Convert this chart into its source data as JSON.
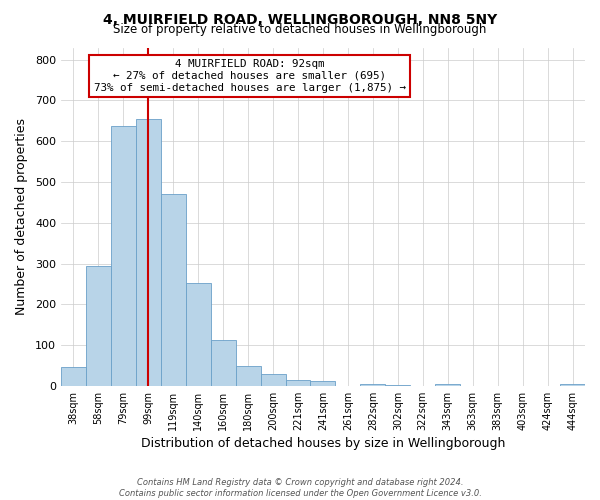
{
  "title": "4, MUIRFIELD ROAD, WELLINGBOROUGH, NN8 5NY",
  "subtitle": "Size of property relative to detached houses in Wellingborough",
  "xlabel": "Distribution of detached houses by size in Wellingborough",
  "ylabel": "Number of detached properties",
  "footer_line1": "Contains HM Land Registry data © Crown copyright and database right 2024.",
  "footer_line2": "Contains public sector information licensed under the Open Government Licence v3.0.",
  "bin_labels": [
    "38sqm",
    "58sqm",
    "79sqm",
    "99sqm",
    "119sqm",
    "140sqm",
    "160sqm",
    "180sqm",
    "200sqm",
    "221sqm",
    "241sqm",
    "261sqm",
    "282sqm",
    "302sqm",
    "322sqm",
    "343sqm",
    "363sqm",
    "383sqm",
    "403sqm",
    "424sqm",
    "444sqm"
  ],
  "bar_values": [
    47,
    295,
    638,
    655,
    470,
    253,
    113,
    48,
    28,
    15,
    12,
    0,
    5,
    2,
    0,
    4,
    0,
    0,
    0,
    0,
    5
  ],
  "bar_color": "#b8d4e8",
  "bar_edge_color": "#6aa0c8",
  "property_line_index": 3,
  "annotation_text": "4 MUIRFIELD ROAD: 92sqm\n← 27% of detached houses are smaller (695)\n73% of semi-detached houses are larger (1,875) →",
  "annotation_box_color": "#ffffff",
  "annotation_box_edge": "#cc0000",
  "vline_color": "#cc0000",
  "ylim": [
    0,
    830
  ],
  "yticks": [
    0,
    100,
    200,
    300,
    400,
    500,
    600,
    700,
    800
  ],
  "background_color": "#ffffff",
  "grid_color": "#cccccc"
}
